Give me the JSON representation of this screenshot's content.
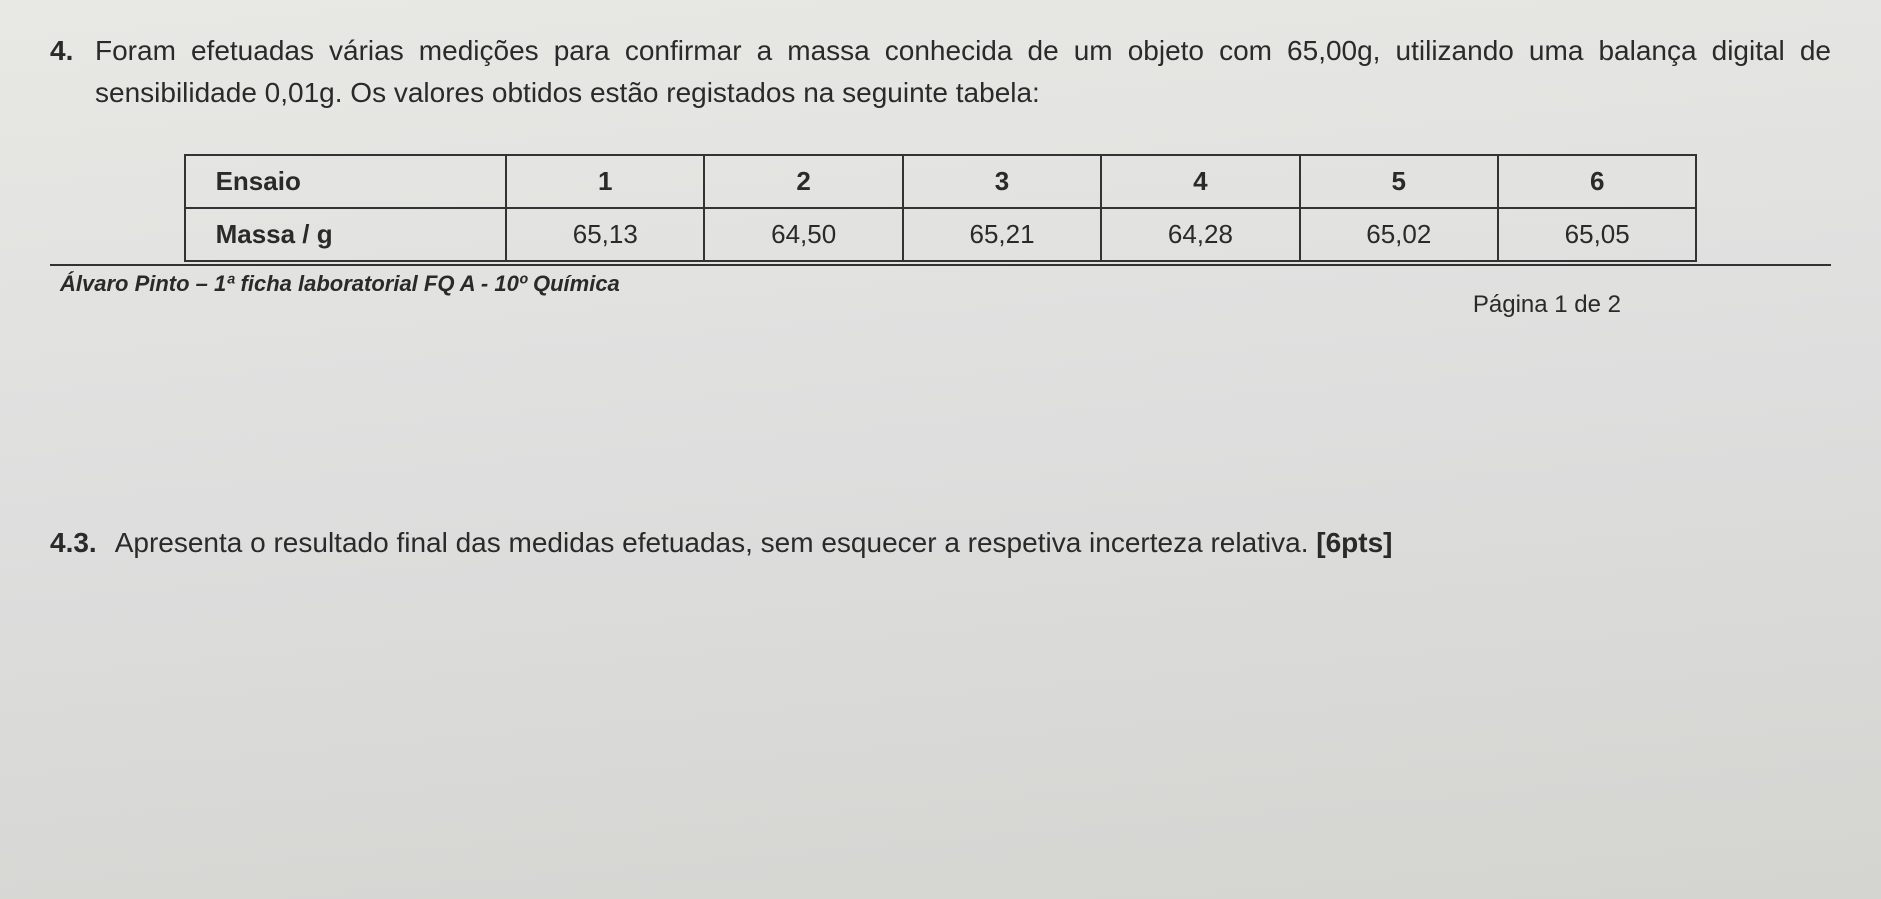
{
  "question": {
    "number": "4.",
    "text": "Foram efetuadas várias medições para confirmar a massa conhecida de um objeto com 65,00g, utilizando uma balança digital de sensibilidade 0,01g. Os valores obtidos estão registados na seguinte tabela:"
  },
  "table": {
    "type": "table",
    "background_color": "#e8e8e4",
    "border_color": "#333333",
    "header_fontweight": "bold",
    "cell_fontsize": 26,
    "columns": [
      "Ensaio",
      "1",
      "2",
      "3",
      "4",
      "5",
      "6"
    ],
    "rows": [
      [
        "Massa / g",
        "65,13",
        "64,50",
        "65,21",
        "64,28",
        "65,02",
        "65,05"
      ]
    ]
  },
  "footer": {
    "left": "Álvaro Pinto – 1ª ficha laboratorial FQ A - 10º Química",
    "right": "Página 1 de 2"
  },
  "subquestion": {
    "number": "4.3.",
    "text": "Apresenta o resultado final das medidas efetuadas, sem esquecer a respetiva incerteza relativa. ",
    "points": "[6pts]"
  },
  "colors": {
    "text": "#2a2a2a",
    "background_top": "#e8e8e4",
    "background_bottom": "#d4d4d0",
    "border": "#333333"
  },
  "typography": {
    "body_fontfamily": "Arial",
    "question_fontsize": 28,
    "table_fontsize": 26,
    "footer_fontsize": 22
  }
}
